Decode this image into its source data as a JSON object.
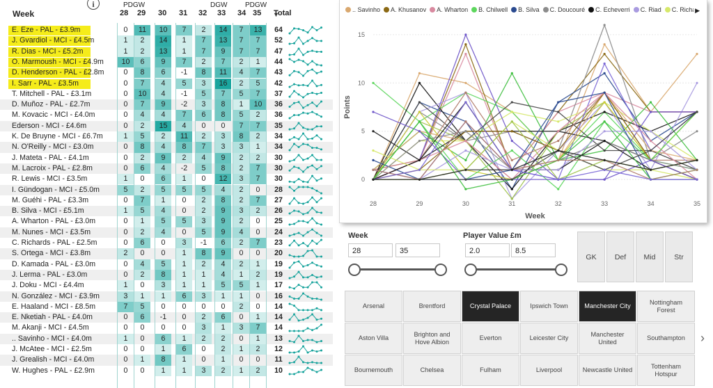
{
  "table": {
    "header": {
      "week_label": "Week",
      "total_label": "Total",
      "pdgw_label": "PDGW",
      "dgw_label": "DGW",
      "weeks": [
        "28",
        "29",
        "30",
        "31",
        "32",
        "33",
        "34",
        "35"
      ]
    },
    "rows": [
      {
        "name": "E. Eze - PAL - £3.9m",
        "pts": [
          0,
          11,
          10,
          7,
          2,
          14,
          7,
          13
        ],
        "total": 64
      },
      {
        "name": "J. Gvardiol - MCI - £4.5m",
        "pts": [
          1,
          2,
          14,
          1,
          7,
          13,
          7,
          7
        ],
        "total": 52
      },
      {
        "name": "R. Dias - MCI - £5.2m",
        "pts": [
          1,
          2,
          13,
          1,
          7,
          9,
          7,
          7
        ],
        "total": 47
      },
      {
        "name": "O. Marmoush - MCI - £4.9m",
        "pts": [
          10,
          6,
          9,
          7,
          2,
          7,
          2,
          1
        ],
        "total": 44
      },
      {
        "name": "D. Henderson - PAL - £2.8m",
        "pts": [
          0,
          8,
          6,
          -1,
          8,
          11,
          4,
          7
        ],
        "total": 43
      },
      {
        "name": "I. Sarr - PAL - £3.5m",
        "pts": [
          0,
          7,
          4,
          5,
          3,
          16,
          2,
          5
        ],
        "total": 42
      },
      {
        "name": "T. Mitchell - PAL - £3.1m",
        "pts": [
          0,
          10,
          4,
          -1,
          5,
          7,
          5,
          7
        ],
        "total": 37
      },
      {
        "name": "D. Muñoz - PAL - £2.7m",
        "pts": [
          0,
          7,
          9,
          -2,
          3,
          8,
          1,
          10
        ],
        "total": 36
      },
      {
        "name": "M. Kovacic - MCI - £4.0m",
        "pts": [
          0,
          4,
          4,
          7,
          6,
          8,
          5,
          2
        ],
        "total": 36
      },
      {
        "name": "Ederson - MCI - £4.6m",
        "pts": [
          0,
          2,
          15,
          4,
          0,
          0,
          7,
          7
        ],
        "total": 35
      },
      {
        "name": "K. De Bruyne - MCI - £6.7m",
        "pts": [
          1,
          5,
          2,
          11,
          2,
          3,
          8,
          2
        ],
        "total": 34
      },
      {
        "name": "N. O'Reilly - MCI - £3.0m",
        "pts": [
          0,
          8,
          4,
          8,
          7,
          3,
          3,
          1
        ],
        "total": 34
      },
      {
        "name": "J. Mateta - PAL - £4.1m",
        "pts": [
          0,
          2,
          9,
          2,
          4,
          9,
          2,
          2
        ],
        "total": 30
      },
      {
        "name": "M. Lacroix - PAL - £2.8m",
        "pts": [
          0,
          6,
          4,
          -2,
          5,
          8,
          2,
          7
        ],
        "total": 30
      },
      {
        "name": "R. Lewis - MCI - £3.5m",
        "pts": [
          1,
          0,
          6,
          1,
          0,
          12,
          3,
          7
        ],
        "total": 30
      },
      {
        "name": "I. Gündogan - MCI - £5.0m",
        "pts": [
          5,
          2,
          5,
          5,
          5,
          4,
          2,
          0
        ],
        "total": 28
      },
      {
        "name": "M. Guéhi - PAL - £3.3m",
        "pts": [
          0,
          7,
          1,
          0,
          2,
          8,
          2,
          7
        ],
        "total": 27
      },
      {
        "name": "B. Silva - MCI - £5.1m",
        "pts": [
          1,
          5,
          4,
          0,
          2,
          9,
          3,
          2
        ],
        "total": 26
      },
      {
        "name": "A. Wharton - PAL - £3.0m",
        "pts": [
          0,
          1,
          5,
          5,
          3,
          9,
          2,
          0
        ],
        "total": 25
      },
      {
        "name": "M. Nunes - MCI - £3.5m",
        "pts": [
          0,
          2,
          4,
          0,
          5,
          9,
          4,
          0
        ],
        "total": 24
      },
      {
        "name": "C. Richards - PAL - £2.5m",
        "pts": [
          0,
          6,
          0,
          3,
          -1,
          6,
          2,
          7
        ],
        "total": 23
      },
      {
        "name": "S. Ortega - MCI - £3.8m",
        "pts": [
          2,
          0,
          0,
          1,
          8,
          9,
          0,
          0
        ],
        "total": 20
      },
      {
        "name": "D. Kamada - PAL - £3.0m",
        "pts": [
          0,
          4,
          5,
          1,
          2,
          4,
          2,
          1
        ],
        "total": 19
      },
      {
        "name": "J. Lerma - PAL - £3.0m",
        "pts": [
          0,
          2,
          8,
          1,
          1,
          4,
          1,
          2
        ],
        "total": 19
      },
      {
        "name": "J. Doku - MCI - £4.4m",
        "pts": [
          1,
          0,
          3,
          1,
          1,
          5,
          5,
          1
        ],
        "total": 17
      },
      {
        "name": "N. González - MCI - £3.9m",
        "pts": [
          3,
          1,
          1,
          6,
          3,
          1,
          1,
          0
        ],
        "total": 16
      },
      {
        "name": "E. Haaland - MCI - £8.5m",
        "pts": [
          7,
          5,
          0,
          0,
          0,
          0,
          2,
          0
        ],
        "total": 14
      },
      {
        "name": "E. Nketiah - PAL - £4.0m",
        "pts": [
          0,
          6,
          -1,
          0,
          2,
          6,
          0,
          1
        ],
        "total": 14
      },
      {
        "name": "M. Akanji - MCI - £4.5m",
        "pts": [
          0,
          0,
          0,
          0,
          3,
          1,
          3,
          7
        ],
        "total": 14
      },
      {
        "name": ".. Savinho - MCI - £4.0m",
        "pts": [
          1,
          0,
          6,
          1,
          2,
          2,
          0,
          1
        ],
        "total": 13
      },
      {
        "name": "J. McAtee - MCI - £2.5m",
        "pts": [
          0,
          0,
          1,
          6,
          0,
          2,
          1,
          2
        ],
        "total": 12
      },
      {
        "name": "J. Grealish - MCI - £4.0m",
        "pts": [
          0,
          1,
          8,
          1,
          0,
          1,
          0,
          0
        ],
        "total": 11
      },
      {
        "name": "W. Hughes - PAL - £2.9m",
        "pts": [
          0,
          0,
          1,
          1,
          3,
          2,
          1,
          2
        ],
        "total": 10
      }
    ]
  },
  "chart_data": {
    "type": "line",
    "xlabel": "Week",
    "ylabel": "Points",
    "x": [
      28,
      29,
      30,
      31,
      32,
      33,
      34,
      35
    ],
    "ylim": [
      -1,
      16
    ],
    "yticks": [
      0,
      5,
      10,
      15
    ],
    "legend": {
      "placement": "top",
      "entries": [
        {
          "name": ".. Savinho",
          "color": "#d9a86f"
        },
        {
          "name": "A. Khusanov",
          "color": "#8b6914"
        },
        {
          "name": "A. Wharton",
          "color": "#d88aa0"
        },
        {
          "name": "B. Chilwell",
          "color": "#5dd65d"
        },
        {
          "name": "B. Silva",
          "color": "#2a4a8f"
        },
        {
          "name": "C. Doucouré",
          "color": "#8c8c8c"
        },
        {
          "name": "C. Echeverri",
          "color": "#111111"
        },
        {
          "name": "C. Riad",
          "color": "#a99be0"
        },
        {
          "name": "C. Richards",
          "color": "#d6e86a"
        }
      ]
    }
  },
  "filters": {
    "week": {
      "label": "Week",
      "min": "28",
      "max": "35",
      "range": [
        28,
        35
      ],
      "bounds": [
        28,
        35
      ]
    },
    "value": {
      "label": "Player Value £m",
      "min": "2.0",
      "max": "8.5",
      "range": [
        2.0,
        8.5
      ],
      "bounds": [
        2.0,
        8.5
      ]
    },
    "positions": [
      "GK",
      "Def",
      "Mid",
      "Str"
    ],
    "teams": [
      {
        "name": "Arsenal",
        "selected": false
      },
      {
        "name": "Brentford",
        "selected": false
      },
      {
        "name": "Crystal Palace",
        "selected": true
      },
      {
        "name": "Ipswich Town",
        "selected": false
      },
      {
        "name": "Manchester City",
        "selected": true
      },
      {
        "name": "Nottingham Forest",
        "selected": false
      },
      {
        "name": "Aston Villa",
        "selected": false
      },
      {
        "name": "Brighton and Hove Albion",
        "selected": false
      },
      {
        "name": "Everton",
        "selected": false
      },
      {
        "name": "Leicester City",
        "selected": false
      },
      {
        "name": "Manchester United",
        "selected": false
      },
      {
        "name": "Southampton",
        "selected": false
      },
      {
        "name": "Bournemouth",
        "selected": false
      },
      {
        "name": "Chelsea",
        "selected": false
      },
      {
        "name": "Fulham",
        "selected": false
      },
      {
        "name": "Liverpool",
        "selected": false
      },
      {
        "name": "Newcastle United",
        "selected": false
      },
      {
        "name": "Tottenham Hotspur",
        "selected": false
      }
    ]
  },
  "colors": {
    "heat_high": "#1aa59e",
    "heat_low": "#e9f7f6",
    "spark": "#17a39c",
    "highlight": "#f5ec1a",
    "selected": "#252525"
  }
}
